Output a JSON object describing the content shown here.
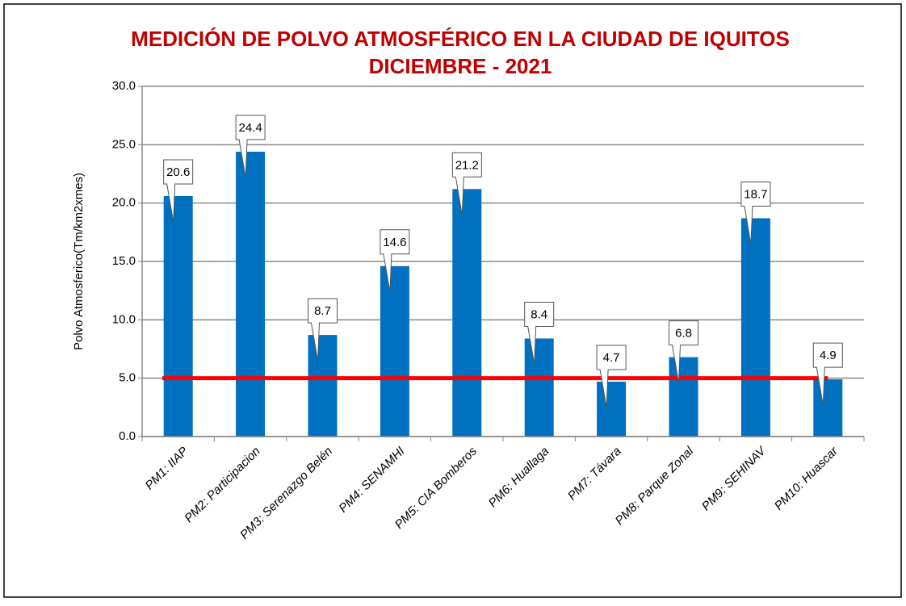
{
  "chart_data": {
    "type": "bar",
    "title": "MEDICIÓN DE POLVO ATMOSFÉRICO EN LA CIUDAD DE IQUITOS",
    "subtitle": "DICIEMBRE - 2021",
    "y_label": "Polvo Atmosferico(Tm/km2xmes)",
    "categories": [
      "PM1: IIAP",
      "PM2: Participacion",
      "PM3: Serenazgo Belén",
      "PM4: SENAMHI",
      "PM5: CIA Bomberos",
      "PM6: Huallaga",
      "PM7: Távara",
      "PM8: Parque Zonal",
      "PM9: SEHINAV",
      "PM10: Huascar"
    ],
    "values": [
      20.6,
      24.4,
      8.7,
      14.6,
      21.2,
      8.4,
      4.7,
      6.8,
      18.7,
      4.9
    ],
    "color": "#0070c0",
    "ylim": [
      0,
      30
    ],
    "yticks": [
      {
        "value": 0,
        "label": "0.0"
      },
      {
        "value": 5,
        "label": "5.0"
      },
      {
        "value": 10,
        "label": "10.0"
      },
      {
        "value": 15,
        "label": "15.0"
      },
      {
        "value": 20,
        "label": "20.0"
      },
      {
        "value": 25,
        "label": "25.0"
      },
      {
        "value": 30,
        "label": "30.0"
      }
    ],
    "grid": true,
    "threshold": 5,
    "threshold_color": "#ff0000"
  }
}
